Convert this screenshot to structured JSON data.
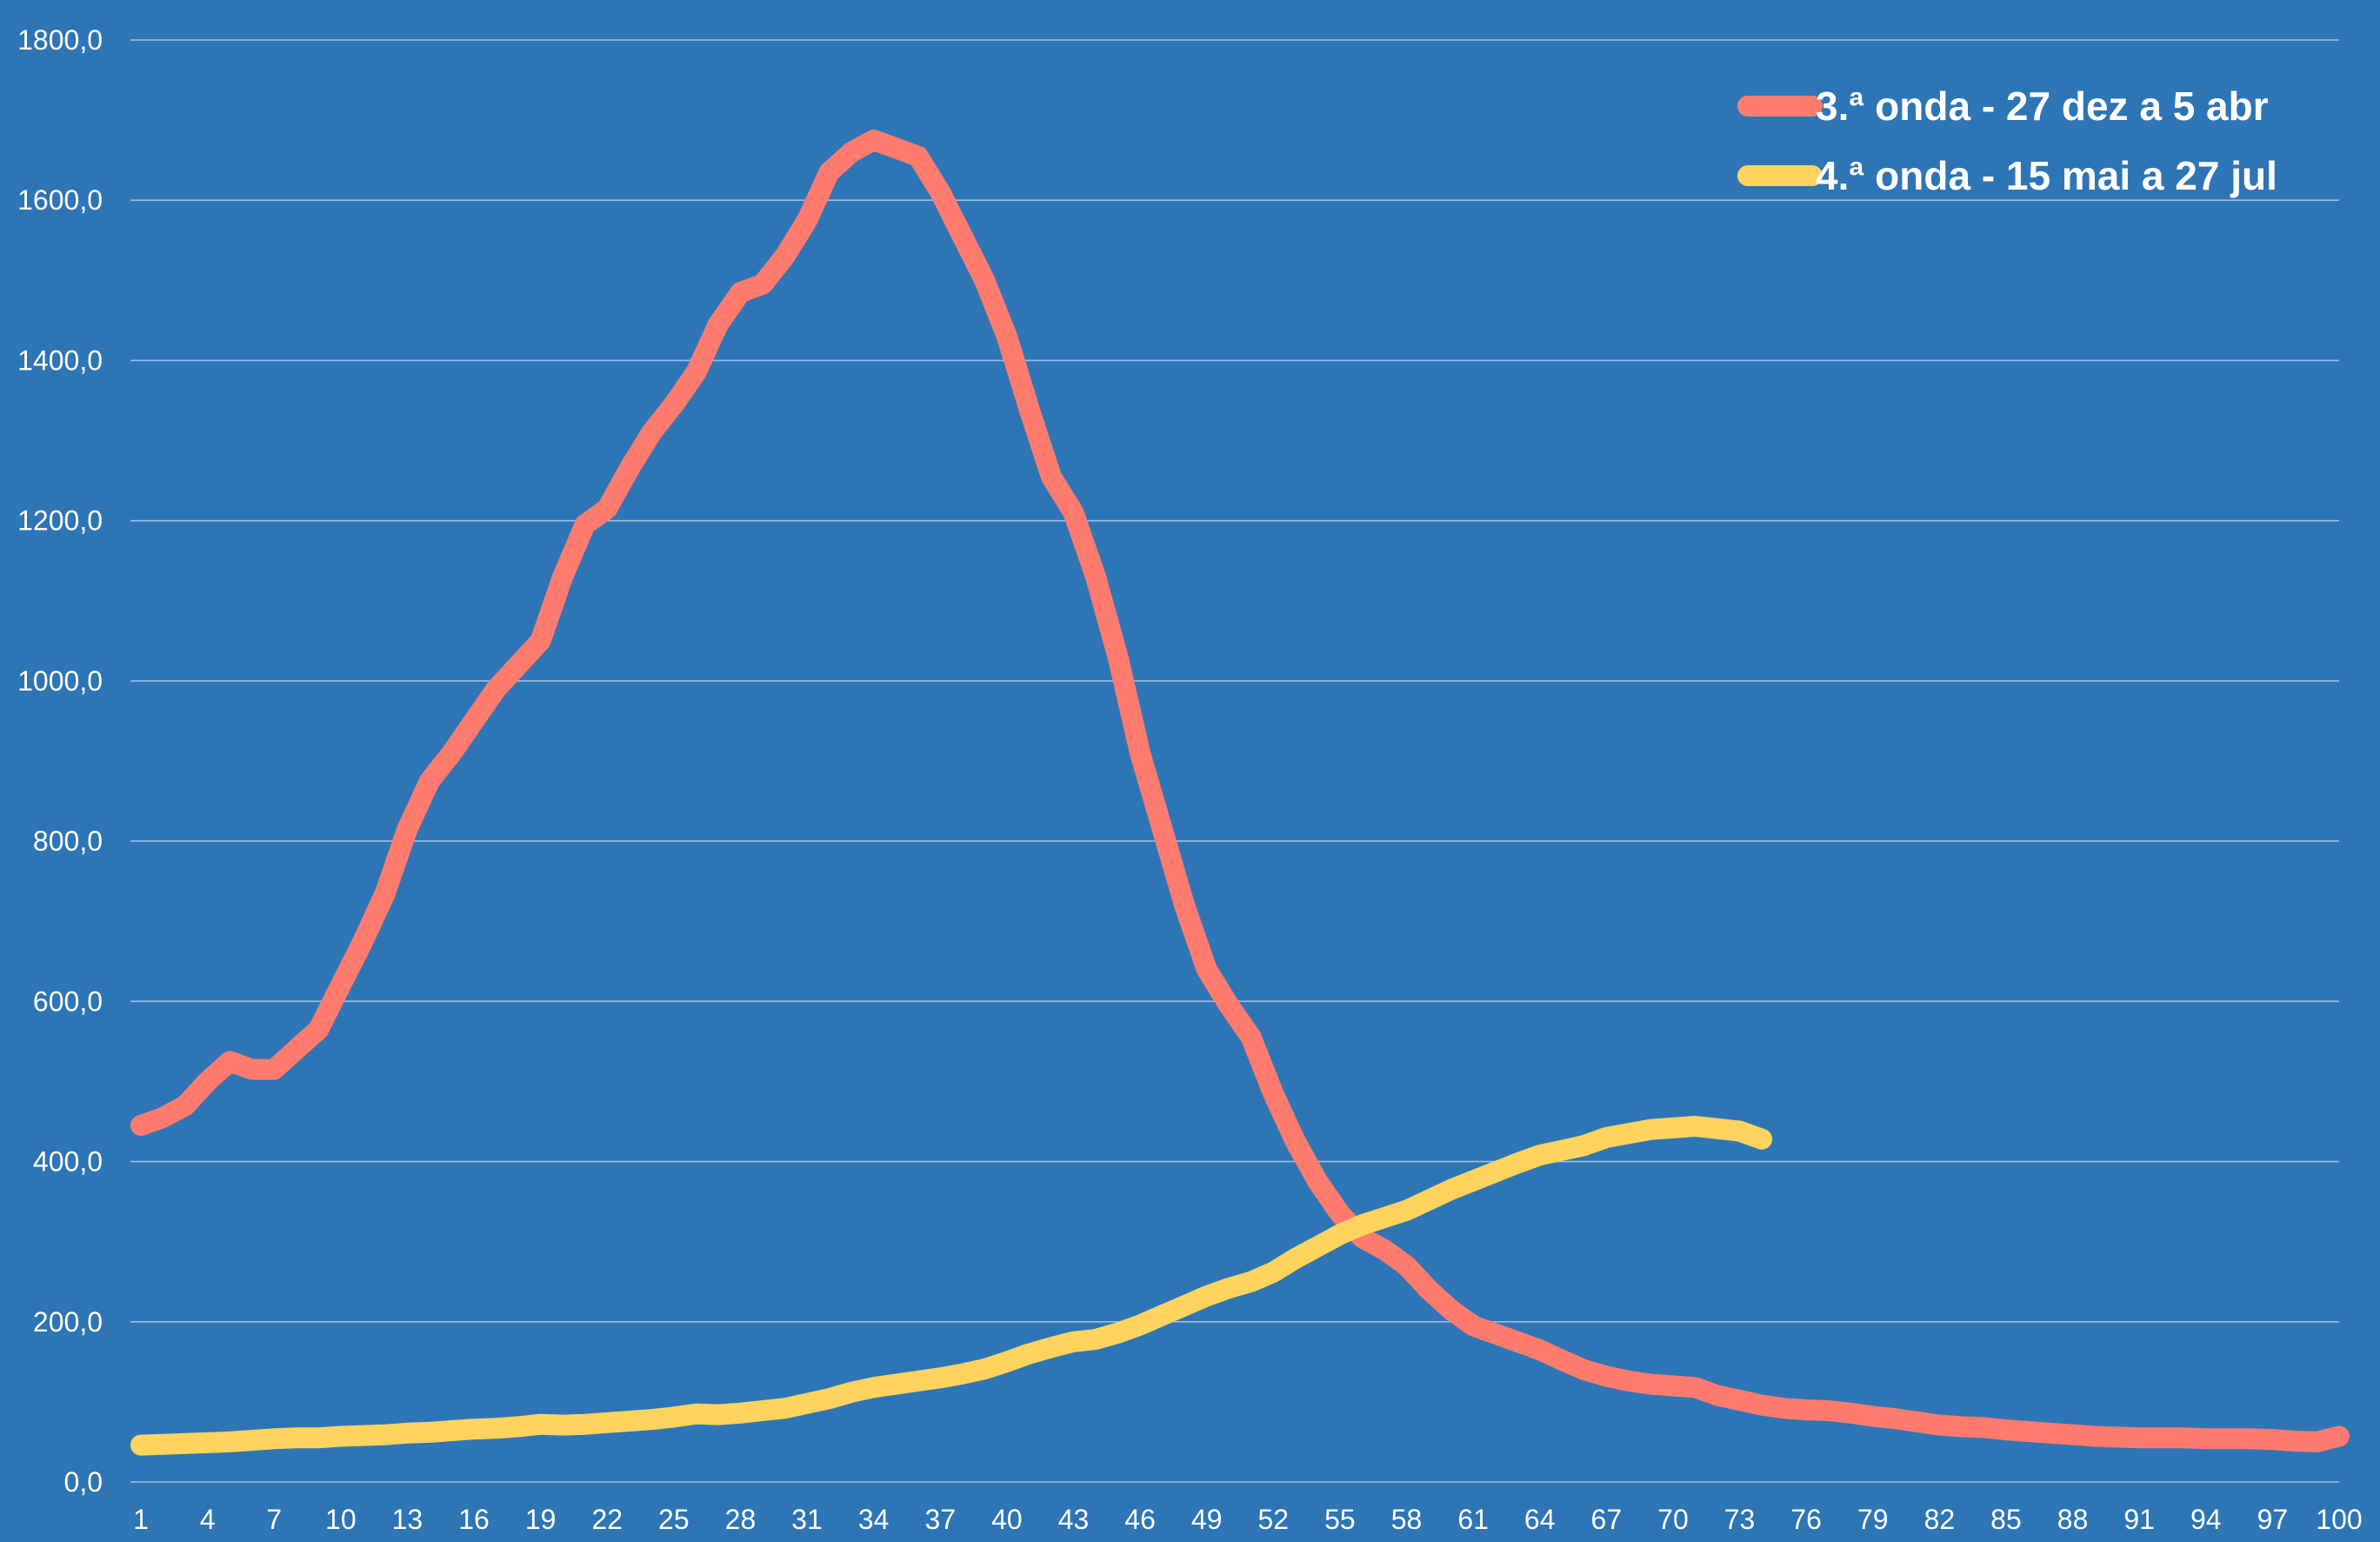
{
  "chart_data": {
    "type": "line",
    "title": "",
    "xlabel": "",
    "ylabel": "",
    "ylim": [
      0,
      1800
    ],
    "xlim": [
      1,
      100
    ],
    "y_ticks": [
      "0,0",
      "200,0",
      "400,0",
      "600,0",
      "800,0",
      "1000,0",
      "1200,0",
      "1400,0",
      "1600,0",
      "1800,0"
    ],
    "x_ticks": [
      "1",
      "4",
      "7",
      "10",
      "13",
      "16",
      "19",
      "22",
      "25",
      "28",
      "31",
      "34",
      "37",
      "40",
      "43",
      "46",
      "49",
      "52",
      "55",
      "58",
      "61",
      "64",
      "67",
      "70",
      "73",
      "76",
      "79",
      "82",
      "85",
      "88",
      "91",
      "94",
      "97",
      "100"
    ],
    "grid": "horizontal",
    "legend_position": "top-right",
    "background": "#2e75b6",
    "series": [
      {
        "name": "3.ª onda - 27 dez a 5 abr",
        "color": "#ff7b6e",
        "x": [
          1,
          2,
          3,
          4,
          5,
          6,
          7,
          8,
          9,
          10,
          11,
          12,
          13,
          14,
          15,
          16,
          17,
          18,
          19,
          20,
          21,
          22,
          23,
          24,
          25,
          26,
          27,
          28,
          29,
          30,
          31,
          32,
          33,
          34,
          35,
          36,
          37,
          38,
          39,
          40,
          41,
          42,
          43,
          44,
          45,
          46,
          47,
          48,
          49,
          50,
          51,
          52,
          53,
          54,
          55,
          56,
          57,
          58,
          59,
          60,
          61,
          62,
          63,
          64,
          65,
          66,
          67,
          68,
          69,
          70,
          71,
          72,
          73,
          74,
          75,
          76,
          77,
          78,
          79,
          80,
          81,
          82,
          83,
          84,
          85,
          86,
          87,
          88,
          89,
          90,
          91,
          92,
          93,
          94,
          95,
          96,
          97,
          98,
          99,
          100
        ],
        "values": [
          445,
          455,
          470,
          500,
          525,
          515,
          515,
          540,
          565,
          620,
          675,
          735,
          815,
          875,
          910,
          950,
          990,
          1020,
          1050,
          1130,
          1195,
          1215,
          1265,
          1310,
          1345,
          1385,
          1445,
          1485,
          1495,
          1530,
          1575,
          1635,
          1660,
          1675,
          1665,
          1655,
          1610,
          1555,
          1500,
          1430,
          1340,
          1255,
          1210,
          1130,
          1030,
          910,
          815,
          720,
          640,
          595,
          555,
          485,
          425,
          375,
          335,
          305,
          290,
          270,
          240,
          215,
          195,
          185,
          175,
          165,
          152,
          140,
          132,
          126,
          122,
          120,
          118,
          108,
          102,
          96,
          92,
          90,
          89,
          86,
          82,
          79,
          75,
          71,
          69,
          68,
          65,
          63,
          61,
          59,
          57,
          56,
          55,
          55,
          55,
          54,
          54,
          54,
          53,
          51,
          50,
          57
        ]
      },
      {
        "name": "4.ª onda - 15 mai a 27 jul",
        "color": "#ffd45e",
        "x": [
          1,
          2,
          3,
          4,
          5,
          6,
          7,
          8,
          9,
          10,
          11,
          12,
          13,
          14,
          15,
          16,
          17,
          18,
          19,
          20,
          21,
          22,
          23,
          24,
          25,
          26,
          27,
          28,
          29,
          30,
          31,
          32,
          33,
          34,
          35,
          36,
          37,
          38,
          39,
          40,
          41,
          42,
          43,
          44,
          45,
          46,
          47,
          48,
          49,
          50,
          51,
          52,
          53,
          54,
          55,
          56,
          57,
          58,
          59,
          60,
          61,
          62,
          63,
          64,
          65,
          66,
          67,
          68,
          69,
          70,
          71,
          72,
          73,
          74
        ],
        "values": [
          46,
          47,
          48,
          49,
          50,
          52,
          54,
          55,
          55,
          57,
          58,
          59,
          61,
          62,
          64,
          66,
          67,
          69,
          72,
          71,
          72,
          74,
          76,
          78,
          81,
          85,
          84,
          86,
          89,
          92,
          98,
          104,
          112,
          118,
          122,
          126,
          130,
          135,
          141,
          150,
          160,
          168,
          175,
          178,
          186,
          196,
          208,
          220,
          232,
          242,
          250,
          262,
          279,
          294,
          309,
          321,
          330,
          339,
          352,
          365,
          376,
          387,
          398,
          408,
          414,
          420,
          430,
          435,
          440,
          442,
          444,
          441,
          438,
          428
        ]
      }
    ]
  }
}
